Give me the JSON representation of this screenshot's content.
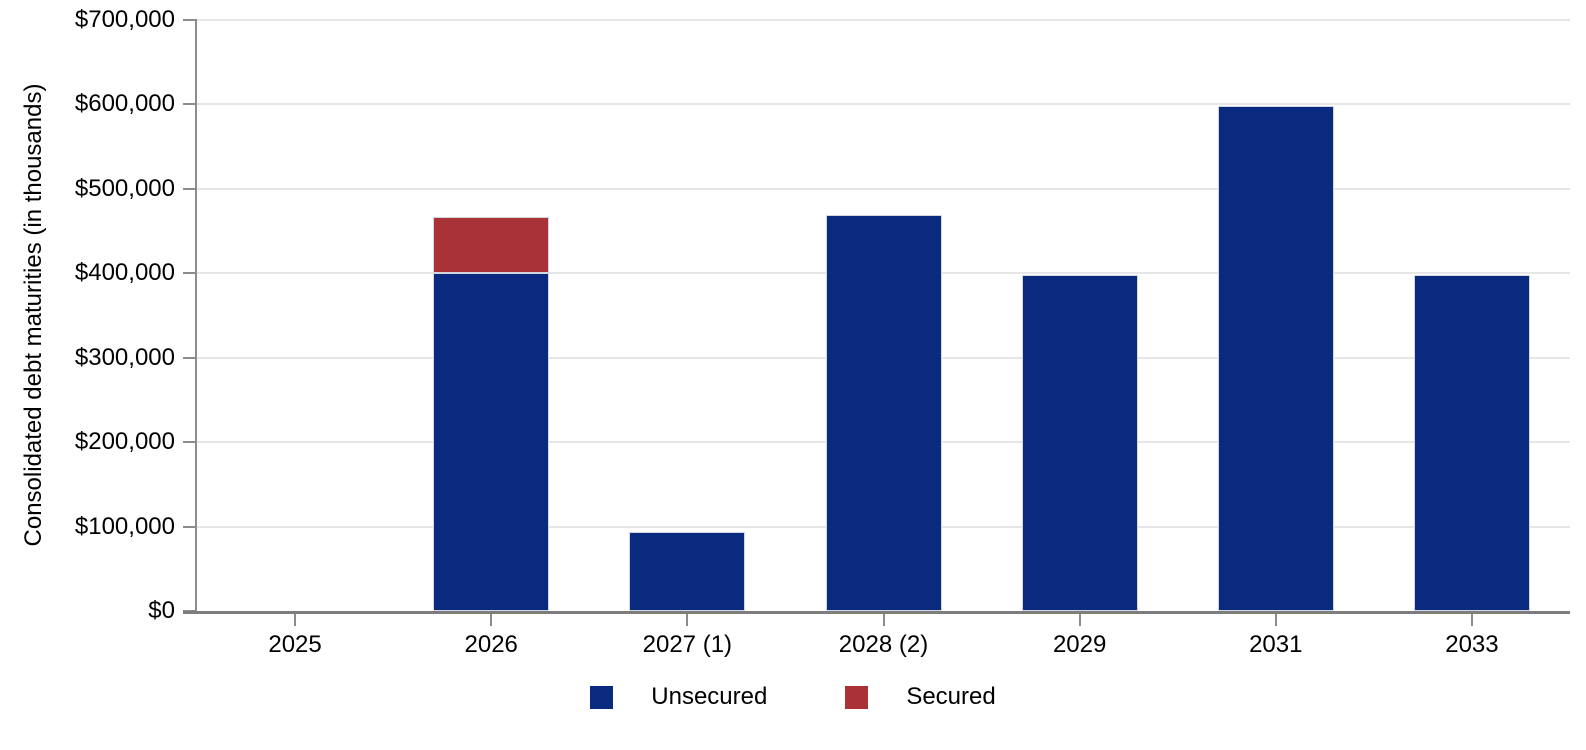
{
  "chart_data": {
    "type": "bar",
    "stacked": true,
    "title": "",
    "xlabel": "",
    "ylabel": "Consolidated debt maturities (in thousands)",
    "categories": [
      "2025",
      "2026",
      "2027 (1)",
      "2028 (2)",
      "2029",
      "2031",
      "2033"
    ],
    "series": [
      {
        "name": "Unsecured",
        "color": "#0A2A80",
        "values": [
          0,
          400000,
          93000,
          469000,
          398000,
          598000,
          398000
        ]
      },
      {
        "name": "Secured",
        "color": "#A93236",
        "values": [
          0,
          67000,
          0,
          0,
          0,
          0,
          0
        ]
      }
    ],
    "ylim": [
      0,
      700000
    ],
    "ytick_step": 100000,
    "ytick_labels": [
      "$0",
      "$100,000",
      "$200,000",
      "$300,000",
      "$400,000",
      "$500,000",
      "$600,000",
      "$700,000"
    ],
    "grid": true,
    "legend_position": "bottom",
    "grid_color": "#e6e6e6",
    "axis_color": "#8c8c8c",
    "x_axis_color": "#7d7d7d",
    "text_color": "#000000"
  },
  "legend": {
    "items": [
      {
        "label": "Unsecured",
        "color": "#0A2A80"
      },
      {
        "label": "Secured",
        "color": "#A93236"
      }
    ]
  }
}
